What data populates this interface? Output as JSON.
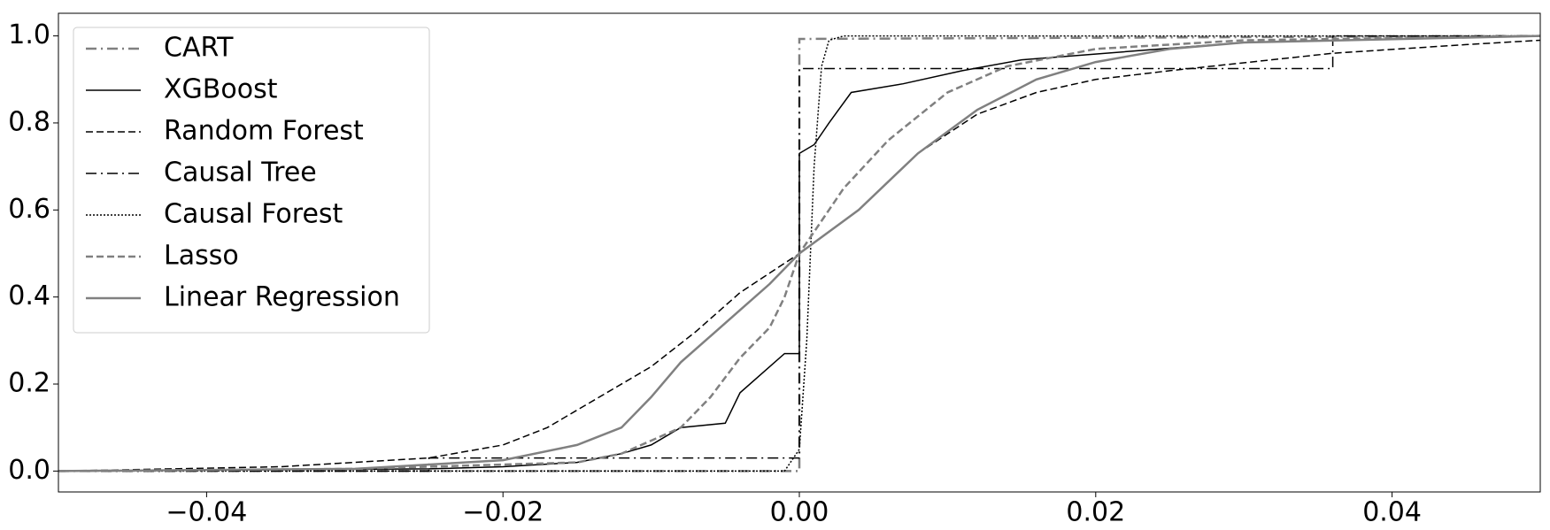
{
  "chart_data": {
    "type": "line",
    "xlim": [
      -0.05,
      0.05
    ],
    "ylim": [
      -0.048,
      1.052
    ],
    "xticks": [
      {
        "value": -0.04,
        "label": "−0.04"
      },
      {
        "value": -0.02,
        "label": "−0.02"
      },
      {
        "value": 0,
        "label": "0.00"
      },
      {
        "value": 0.02,
        "label": "0.02"
      },
      {
        "value": 0.04,
        "label": "0.04"
      }
    ],
    "yticks": [
      {
        "value": 0,
        "label": "0.0"
      },
      {
        "value": 0.2,
        "label": "0.2"
      },
      {
        "value": 0.4,
        "label": "0.4"
      },
      {
        "value": 0.6,
        "label": "0.6"
      },
      {
        "value": 0.8,
        "label": "0.8"
      },
      {
        "value": 1,
        "label": "1.0"
      }
    ],
    "grid": false,
    "legend": "upper left",
    "series": [
      {
        "name": "CART",
        "color": "#808080",
        "dash": "dashdot",
        "width": 2.5,
        "x": [
          -0.05,
          0,
          0,
          0.05
        ],
        "values": [
          0,
          0,
          0.993,
          1.0
        ]
      },
      {
        "name": "XGBoost",
        "color": "#000000",
        "dash": "solid",
        "width": 1.5,
        "x": [
          -0.05,
          -0.025,
          -0.02,
          -0.015,
          -0.012,
          -0.01,
          -0.008,
          -0.005,
          -0.004,
          -0.001,
          0,
          0,
          0.001,
          0.002,
          0.0035,
          0.007,
          0.011,
          0.015,
          0.03,
          0.05
        ],
        "values": [
          0,
          0.005,
          0.01,
          0.02,
          0.04,
          0.06,
          0.1,
          0.11,
          0.18,
          0.27,
          0.27,
          0.73,
          0.75,
          0.8,
          0.87,
          0.89,
          0.92,
          0.945,
          0.985,
          1.0
        ]
      },
      {
        "name": "Random Forest",
        "color": "#000000",
        "dash": "dashed",
        "width": 1.5,
        "x": [
          -0.05,
          -0.035,
          -0.025,
          -0.02,
          -0.017,
          -0.015,
          -0.01,
          -0.007,
          -0.004,
          0,
          0.004,
          0.008,
          0.012,
          0.016,
          0.02,
          0.025,
          0.036,
          0.045,
          0.05
        ],
        "values": [
          0,
          0.01,
          0.03,
          0.06,
          0.1,
          0.14,
          0.24,
          0.32,
          0.41,
          0.5,
          0.6,
          0.73,
          0.82,
          0.87,
          0.9,
          0.92,
          0.96,
          0.98,
          0.99
        ]
      },
      {
        "name": "Causal Tree",
        "color": "#000000",
        "dash": "dashdot",
        "width": 1.5,
        "x": [
          -0.05,
          -0.025,
          -0.025,
          0,
          0,
          0.036,
          0.036,
          0.05
        ],
        "values": [
          0,
          0,
          0.03,
          0.03,
          0.925,
          0.925,
          1.0,
          1.0
        ]
      },
      {
        "name": "Causal Forest",
        "color": "#000000",
        "dash": "dotted",
        "width": 1.5,
        "x": [
          -0.05,
          -0.001,
          0,
          0.0005,
          0.001,
          0.0015,
          0.002,
          0.003,
          0.05
        ],
        "values": [
          0,
          0,
          0.05,
          0.3,
          0.7,
          0.93,
          0.99,
          1.0,
          1.0
        ]
      },
      {
        "name": "Lasso",
        "color": "#808080",
        "dash": "dashed",
        "width": 2.5,
        "x": [
          -0.05,
          -0.03,
          -0.015,
          -0.012,
          -0.01,
          -0.008,
          -0.006,
          -0.004,
          -0.002,
          -0.001,
          0,
          0.003,
          0.006,
          0.01,
          0.014,
          0.02,
          0.03,
          0.05
        ],
        "values": [
          0,
          0.005,
          0.02,
          0.04,
          0.07,
          0.1,
          0.17,
          0.26,
          0.33,
          0.4,
          0.5,
          0.65,
          0.76,
          0.87,
          0.93,
          0.97,
          0.99,
          1.0
        ]
      },
      {
        "name": "Linear Regression",
        "color": "#808080",
        "dash": "solid",
        "width": 2.5,
        "x": [
          -0.05,
          -0.03,
          -0.02,
          -0.015,
          -0.012,
          -0.01,
          -0.008,
          -0.006,
          -0.004,
          -0.002,
          0,
          0.004,
          0.008,
          0.012,
          0.016,
          0.02,
          0.025,
          0.03,
          0.05
        ],
        "values": [
          0,
          0.005,
          0.025,
          0.06,
          0.1,
          0.17,
          0.25,
          0.31,
          0.37,
          0.43,
          0.5,
          0.6,
          0.73,
          0.83,
          0.9,
          0.94,
          0.97,
          0.985,
          1.0
        ]
      }
    ]
  }
}
